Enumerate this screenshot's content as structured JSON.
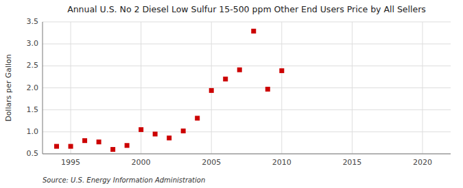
{
  "chart_data": {
    "type": "scatter",
    "title": "Annual U.S. No 2 Diesel Low Sulfur 15-500 ppm Other End Users Price by All Sellers",
    "ylabel": "Dollars per Gallon",
    "source": "Source: U.S. Energy Information Administration",
    "color": "#cc0000",
    "marker": "square",
    "grid": true,
    "x": [
      1994,
      1995,
      1996,
      1997,
      1998,
      1999,
      2000,
      2001,
      2002,
      2003,
      2004,
      2005,
      2006,
      2007,
      2008,
      2009,
      2010
    ],
    "values": [
      0.67,
      0.67,
      0.8,
      0.77,
      0.6,
      0.69,
      1.05,
      0.95,
      0.86,
      1.02,
      1.31,
      1.94,
      2.2,
      2.41,
      3.29,
      1.97,
      2.39
    ],
    "xlim": [
      1993,
      2022
    ],
    "ylim": [
      0.5,
      3.5
    ],
    "xticks": [
      1995,
      2000,
      2005,
      2010,
      2015,
      2020
    ],
    "yticks": [
      0.5,
      {
        "value": 1.0,
        "label": "1.0"
      },
      1.5,
      {
        "value": 2.0,
        "label": "2.0"
      },
      2.5,
      {
        "value": 3.0,
        "label": "3.0"
      },
      3.5
    ]
  }
}
